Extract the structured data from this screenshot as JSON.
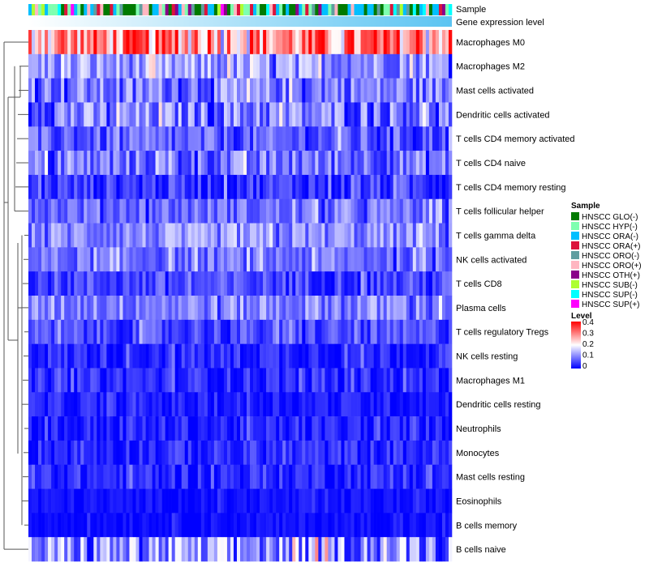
{
  "chart_data": {
    "type": "heatmap",
    "annotation_labels": {
      "sample": "Sample",
      "gene": "Gene expression level"
    },
    "rows": [
      {
        "name": "Macrophages M0",
        "mean": 0.28,
        "spread": 0.12
      },
      {
        "name": "Macrophages M2",
        "mean": 0.11,
        "spread": 0.07
      },
      {
        "name": "Mast cells activated",
        "mean": 0.09,
        "spread": 0.07
      },
      {
        "name": "Dendritic cells activated",
        "mean": 0.09,
        "spread": 0.08
      },
      {
        "name": "T cells CD4 memory activated",
        "mean": 0.06,
        "spread": 0.06
      },
      {
        "name": "T cells CD4 naive",
        "mean": 0.08,
        "spread": 0.07
      },
      {
        "name": "T cells CD4 memory resting",
        "mean": 0.04,
        "spread": 0.05
      },
      {
        "name": "T cells follicular helper",
        "mean": 0.08,
        "spread": 0.05
      },
      {
        "name": "T cells gamma delta",
        "mean": 0.1,
        "spread": 0.06
      },
      {
        "name": "NK cells activated",
        "mean": 0.08,
        "spread": 0.05
      },
      {
        "name": "T cells CD8",
        "mean": 0.05,
        "spread": 0.05
      },
      {
        "name": "Plasma cells",
        "mean": 0.1,
        "spread": 0.06
      },
      {
        "name": "T cells regulatory  Tregs",
        "mean": 0.05,
        "spread": 0.05
      },
      {
        "name": "NK cells resting",
        "mean": 0.03,
        "spread": 0.04
      },
      {
        "name": "Macrophages M1",
        "mean": 0.03,
        "spread": 0.04
      },
      {
        "name": "Dendritic cells resting",
        "mean": 0.02,
        "spread": 0.03
      },
      {
        "name": "Neutrophils",
        "mean": 0.02,
        "spread": 0.04
      },
      {
        "name": "Monocytes",
        "mean": 0.03,
        "spread": 0.04
      },
      {
        "name": "Mast cells resting",
        "mean": 0.03,
        "spread": 0.04
      },
      {
        "name": "Eosinophils",
        "mean": 0.01,
        "spread": 0.02
      },
      {
        "name": "B cells memory",
        "mean": 0.01,
        "spread": 0.02
      },
      {
        "name": "B cells naive",
        "mean": 0.1,
        "spread": 0.1
      }
    ],
    "n_columns": 130,
    "color_scale": {
      "min": 0,
      "mid": 0.2,
      "max": 0.4,
      "low": "#0000ff",
      "midcolor": "#ffffff",
      "high": "#ff0000"
    },
    "gene_bar_colors": [
      "#ffffff",
      "#5bc4f2"
    ],
    "legend": {
      "sample_title": "Sample",
      "samples": [
        {
          "name": "HNSCC GLO(-)",
          "color": "#007a00"
        },
        {
          "name": "HNSCC HYP(-)",
          "color": "#7fffb0"
        },
        {
          "name": "HNSCC ORA(-)",
          "color": "#00bfff"
        },
        {
          "name": "HNSCC ORA(+)",
          "color": "#dc143c"
        },
        {
          "name": "HNSCC ORO(-)",
          "color": "#5f9ea0"
        },
        {
          "name": "HNSCC ORO(+)",
          "color": "#ffb6c1"
        },
        {
          "name": "HNSCC OTH(+)",
          "color": "#8b008b"
        },
        {
          "name": "HNSCC SUB(-)",
          "color": "#adff2f"
        },
        {
          "name": "HNSCC SUP(-)",
          "color": "#00ffff"
        },
        {
          "name": "HNSCC SUP(+)",
          "color": "#ff00ff"
        }
      ],
      "level_title": "Level",
      "level_ticks": [
        "0.4",
        "0.3",
        "0.2",
        "0.1",
        "0"
      ]
    }
  }
}
